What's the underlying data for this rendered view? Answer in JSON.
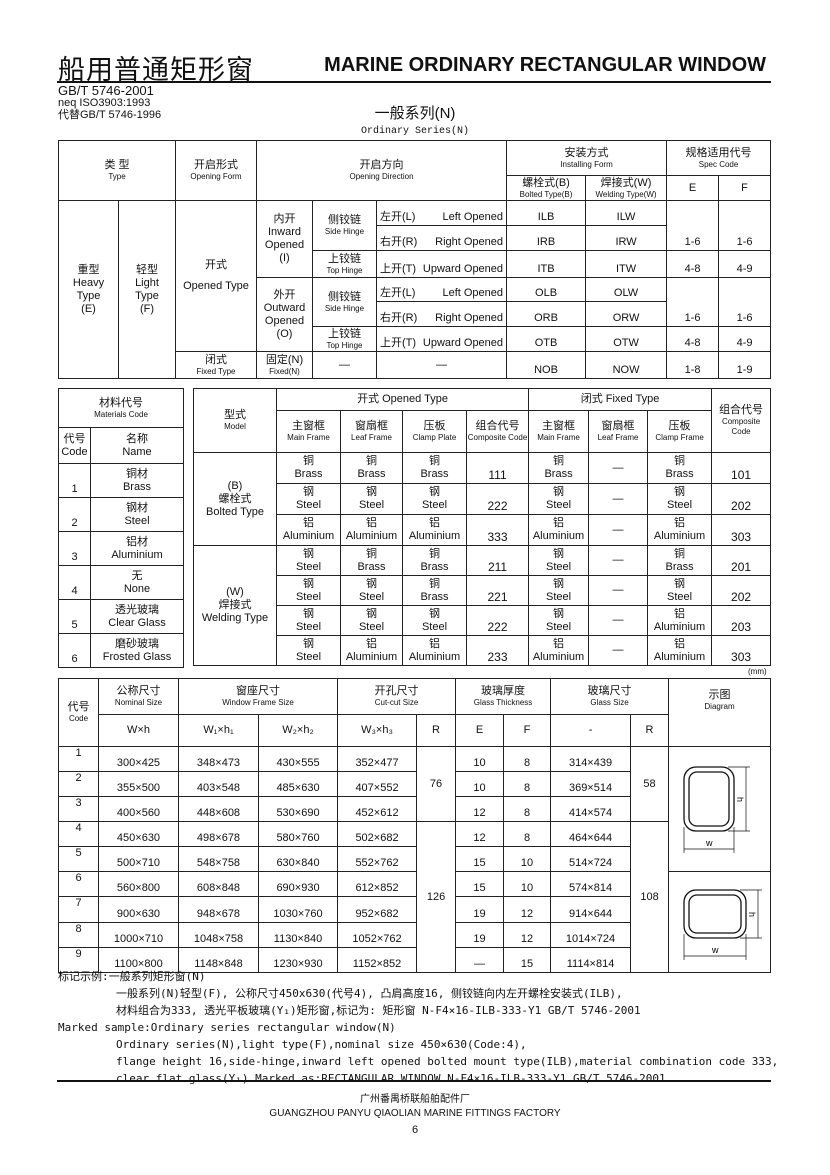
{
  "header": {
    "title_cn": "船用普通矩形窗",
    "title_en": "MARINE ORDINARY RECTANGULAR WINDOW",
    "standard": "GB/T 5746-2001",
    "neq": "neq ISO3903:1993",
    "replaces": "代替GB/T 5746-1996",
    "series_cn": "一般系列(N)",
    "series_en": "Ordinary Series(N)"
  },
  "type_table": {
    "h_type_cn": "类  型",
    "h_type_en": "Type",
    "h_form_cn": "开启形式",
    "h_form_en": "Opening Form",
    "h_dir_cn": "开启方向",
    "h_dir_en": "Opening Direction",
    "h_install_cn": "安装方式",
    "h_install_en": "Installing Form",
    "h_spec_cn": "规格适用代号",
    "h_spec_en": "Spec Code",
    "h_bolted_cn": "螺栓式(B)",
    "h_bolted_en": "Bolted Type(B)",
    "h_welding_cn": "焊接式(W)",
    "h_welding_en": "Welding Type(W)",
    "h_e": "E",
    "h_f": "F",
    "heavy": [
      "重型",
      "Heavy",
      "Type",
      "(E)"
    ],
    "light": [
      "轻型",
      "Light",
      "Type",
      "(F)"
    ],
    "opened_cn": "开式",
    "opened_en": "Opened Type",
    "inward": [
      "内开",
      "Inward",
      "Opened",
      "(I)"
    ],
    "outward": [
      "外开",
      "Outward",
      "Opened",
      "(O)"
    ],
    "side_cn": "侧铰链",
    "side_en": "Side Hinge",
    "top_cn": "上铰链",
    "top_en": "Top Hinge",
    "left_cn": "左开(L)",
    "left_en": "Left Opened",
    "right_cn": "右开(R)",
    "right_en": "Right Opened",
    "up_cn": "上开(T)",
    "up_en": "Upward Opened",
    "fixed_cn": "闭式",
    "fixed_en": "Fixed Type",
    "fixedn_cn": "固定(N)",
    "fixedn_en": "Fixed(N)",
    "dash": "—",
    "codes": {
      "ILB": "ILB",
      "ILW": "ILW",
      "IRB": "IRB",
      "IRW": "IRW",
      "ITB": "ITB",
      "ITW": "ITW",
      "OLB": "OLB",
      "OLW": "OLW",
      "ORB": "ORB",
      "ORW": "ORW",
      "OTB": "OTB",
      "OTW": "OTW",
      "NOB": "NOB",
      "NOW": "NOW"
    },
    "spec": {
      "side_e": "1-6",
      "side_f": "1-6",
      "top_e": "4-8",
      "top_f": "4-9",
      "fixed_e": "1-8",
      "fixed_f": "1-9"
    }
  },
  "materials": {
    "title_cn": "材料代号",
    "title_en": "Materials Code",
    "h_code_cn": "代号",
    "h_code_en": "Code",
    "h_name_cn": "名称",
    "h_name_en": "Name",
    "rows": [
      {
        "code": "1",
        "cn": "铜材",
        "en": "Brass"
      },
      {
        "code": "2",
        "cn": "钢材",
        "en": "Steel"
      },
      {
        "code": "3",
        "cn": "铝材",
        "en": "Aluminium"
      },
      {
        "code": "4",
        "cn": "无",
        "en": "None"
      },
      {
        "code": "5",
        "cn": "透光玻璃",
        "en": "Clear Glass"
      },
      {
        "code": "6",
        "cn": "磨砂玻璃",
        "en": "Frosted Glass"
      }
    ]
  },
  "combo": {
    "h_model_cn": "型式",
    "h_model_en": "Model",
    "h_opened": "开式 Opened Type",
    "h_fixed": "闭式 Fixed Type",
    "h_composite_cn": "组合代号",
    "h_composite_en": "Composite Code",
    "h_cols": [
      {
        "cn": "主窗框",
        "en": "Main Frame"
      },
      {
        "cn": "窗扇框",
        "en": "Leaf Frame"
      },
      {
        "cn": "压板",
        "en": "Clamp Plate"
      },
      {
        "cn": "组合代号",
        "en": "Composite Code"
      },
      {
        "cn": "主窗框",
        "en": "Main Frame"
      },
      {
        "cn": "窗扇框",
        "en": "Leaf Frame"
      },
      {
        "cn": "压板",
        "en": "Clamp Frame"
      }
    ],
    "groups": [
      {
        "label": [
          "(B)",
          "螺栓式",
          "Bolted Type"
        ],
        "rows": [
          {
            "cells": [
              [
                "铜",
                "Brass"
              ],
              [
                "铜",
                "Brass"
              ],
              [
                "铜",
                "Brass"
              ],
              "111",
              [
                "铜",
                "Brass"
              ],
              "—",
              [
                "铜",
                "Brass"
              ],
              "101"
            ]
          },
          {
            "cells": [
              [
                "钢",
                "Steel"
              ],
              [
                "钢",
                "Steel"
              ],
              [
                "钢",
                "Steel"
              ],
              "222",
              [
                "钢",
                "Steel"
              ],
              "—",
              [
                "钢",
                "Steel"
              ],
              "202"
            ]
          },
          {
            "cells": [
              [
                "铝",
                "Aluminium"
              ],
              [
                "铝",
                "Aluminium"
              ],
              [
                "铝",
                "Aluminium"
              ],
              "333",
              [
                "铝",
                "Aluminium"
              ],
              "—",
              [
                "铝",
                "Aluminium"
              ],
              "303"
            ]
          }
        ]
      },
      {
        "label": [
          "(W)",
          "焊接式",
          "Welding Type"
        ],
        "rows": [
          {
            "cells": [
              [
                "钢",
                "Steel"
              ],
              [
                "铜",
                "Brass"
              ],
              [
                "铜",
                "Brass"
              ],
              "211",
              [
                "钢",
                "Steel"
              ],
              "—",
              [
                "铜",
                "Brass"
              ],
              "201"
            ]
          },
          {
            "cells": [
              [
                "钢",
                "Steel"
              ],
              [
                "钢",
                "Steel"
              ],
              [
                "铜",
                "Brass"
              ],
              "221",
              [
                "钢",
                "Steel"
              ],
              "—",
              [
                "钢",
                "Steel"
              ],
              "202"
            ]
          },
          {
            "cells": [
              [
                "钢",
                "Steel"
              ],
              [
                "钢",
                "Steel"
              ],
              [
                "钢",
                "Steel"
              ],
              "222",
              [
                "钢",
                "Steel"
              ],
              "—",
              [
                "铝",
                "Aluminium"
              ],
              "203"
            ]
          },
          {
            "cells": [
              [
                "钢",
                "Steel"
              ],
              [
                "铝",
                "Aluminium"
              ],
              [
                "铝",
                "Aluminium"
              ],
              "233",
              [
                "铝",
                "Aluminium"
              ],
              "—",
              [
                "铝",
                "Aluminium"
              ],
              "303"
            ]
          }
        ]
      }
    ],
    "unit": "(mm)"
  },
  "sizes": {
    "h_code_cn": "代号",
    "h_code_en": "Code",
    "h_nominal_cn": "公称尺寸",
    "h_nominal_en": "Nominal Size",
    "h_frame_cn": "窗座尺寸",
    "h_frame_en": "Window Frame Size",
    "h_cut_cn": "开孔尺寸",
    "h_cut_en": "Cut-cut Size",
    "h_thick_cn": "玻璃厚度",
    "h_thick_en": "Glass Thickness",
    "h_glass_cn": "玻璃尺寸",
    "h_glass_en": "Glass Size",
    "h_diag_cn": "示图",
    "h_diag_en": "Diagram",
    "sub": [
      "W×h",
      "W₁×h₁",
      "W₂×h₂",
      "W₃×h₃",
      "R",
      "E",
      "F",
      "-",
      "R"
    ],
    "cut_r": [
      "76",
      "126"
    ],
    "glass_r": [
      "58",
      "108"
    ],
    "rows": [
      [
        "1",
        "300×425",
        "348×473",
        "430×555",
        "352×477",
        "10",
        "8",
        "314×439"
      ],
      [
        "2",
        "355×500",
        "403×548",
        "485×630",
        "407×552",
        "10",
        "8",
        "369×514"
      ],
      [
        "3",
        "400×560",
        "448×608",
        "530×690",
        "452×612",
        "12",
        "8",
        "414×574"
      ],
      [
        "4",
        "450×630",
        "498×678",
        "580×760",
        "502×682",
        "12",
        "8",
        "464×644"
      ],
      [
        "5",
        "500×710",
        "548×758",
        "630×840",
        "552×762",
        "15",
        "10",
        "514×724"
      ],
      [
        "6",
        "560×800",
        "608×848",
        "690×930",
        "612×852",
        "15",
        "10",
        "574×814"
      ],
      [
        "7",
        "900×630",
        "948×678",
        "1030×760",
        "952×682",
        "19",
        "12",
        "914×644"
      ],
      [
        "8",
        "1000×710",
        "1048×758",
        "1130×840",
        "1052×762",
        "19",
        "12",
        "1014×724"
      ],
      [
        "9",
        "1100×800",
        "1148×848",
        "1230×930",
        "1152×852",
        "—",
        "15",
        "1114×814"
      ]
    ],
    "diagram_w": "w",
    "diagram_h": "h"
  },
  "notes": {
    "cn_title": "标记示例:一般系列矩形窗(N)",
    "cn_1": "一般系列(N)轻型(F), 公称尺寸450x630(代号4), 凸肩高度16, 侧铰链向内左开螺栓安装式(ILB),",
    "cn_2": "材料组合为333, 透光平板玻璃(Y₁)矩形窗,标记为: 矩形窗  N-F4×16-ILB-333-Y1  GB/T 5746-2001",
    "en_title": "Marked sample:Ordinary series rectangular window(N)",
    "en_1": "Ordinary series(N),light type(F),nominal size 450×630(Code:4),",
    "en_2": "flange height 16,side-hinge,inward left opened bolted mount type(ILB),material combination code 333,",
    "en_3": "clear flat glass(Y₁).Marked as:RECTANGULAR WINDOW  N-F4×16-ILB-333-Y1  GB/T 5746-2001"
  },
  "footer": {
    "company_cn": "广州番禺桥联船舶配件厂",
    "company_en": "GUANGZHOU PANYU QIAOLIAN MARINE FITTINGS FACTORY",
    "page": "6"
  }
}
